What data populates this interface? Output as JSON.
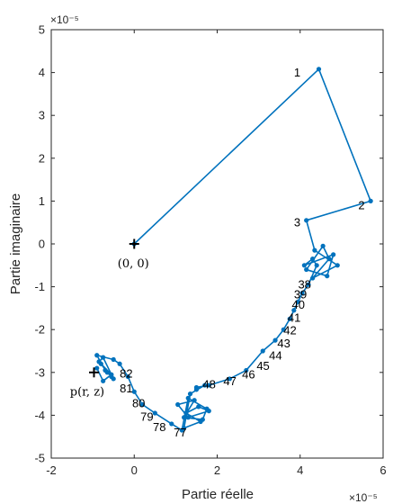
{
  "chart_data": {
    "type": "line",
    "xlabel": "Partie réelle",
    "ylabel": "Partie imaginaire",
    "xlim": [
      -2,
      6
    ],
    "ylim": [
      -5,
      5
    ],
    "x_ticks": [
      "-2",
      "0",
      "2",
      "4",
      "6"
    ],
    "y_ticks": [
      "-5",
      "-4",
      "-3",
      "-2",
      "-1",
      "0",
      "1",
      "2",
      "3",
      "4",
      "5"
    ],
    "x_exponent": "×10⁻⁵",
    "y_exponent": "×10⁻⁵",
    "grid": false,
    "colors": {
      "series": "#0072BD",
      "marker": "#000000",
      "axis": "#262626"
    },
    "series": [
      {
        "x": [
          0,
          4.45,
          5.7,
          4.15,
          4.35,
          4.9,
          4.3,
          4.7,
          4.55,
          4.15,
          4.65,
          4.8,
          4.1,
          4.3,
          4.4,
          4.2,
          4.05,
          3.95,
          3.85,
          3.75,
          3.6,
          3.4,
          3.1,
          2.7,
          2.3,
          1.8,
          1.5,
          1.5,
          1.7,
          1.35,
          1.2,
          1.6,
          1.25,
          1.55,
          1.8,
          1.3,
          1.05,
          1.45,
          1.2,
          1.65,
          1.75,
          1.3,
          1.15,
          0.9,
          0.5,
          0.2,
          0,
          -0.15,
          -0.35,
          -0.5,
          -0.9,
          -0.7,
          -0.55,
          -0.8,
          -0.65,
          -0.5,
          -0.75,
          -0.85,
          -0.55,
          -0.75,
          -0.9
        ],
        "y": [
          0,
          4.08,
          1.0,
          0.55,
          -0.15,
          -0.5,
          -0.8,
          -0.35,
          -0.05,
          -0.6,
          -0.75,
          -0.25,
          -0.5,
          -0.35,
          -0.5,
          -0.95,
          -1.15,
          -1.35,
          -1.55,
          -1.75,
          -2.0,
          -2.25,
          -2.5,
          -2.95,
          -3.15,
          -3.3,
          -3.35,
          -3.4,
          -3.3,
          -3.5,
          -4.3,
          -4.15,
          -3.95,
          -3.8,
          -3.9,
          -4.05,
          -3.75,
          -3.65,
          -4.05,
          -4.1,
          -3.85,
          -3.6,
          -4.35,
          -4.2,
          -3.95,
          -3.75,
          -3.45,
          -3.1,
          -2.8,
          -2.7,
          -2.6,
          -2.95,
          -3.1,
          -2.8,
          -3.0,
          -3.15,
          -2.65,
          -2.75,
          -3.05,
          -3.2,
          -2.9
        ]
      }
    ],
    "point_labels": [
      {
        "text": "1",
        "x": 4.45,
        "y": 4.08,
        "dx": 3.85,
        "dy": 4.0
      },
      {
        "text": "2",
        "x": 5.7,
        "y": 1.0,
        "dx": 5.4,
        "dy": 0.9
      },
      {
        "text": "3",
        "x": 4.15,
        "y": 0.55,
        "dx": 3.85,
        "dy": 0.5
      },
      {
        "text": "38",
        "x": 4.05,
        "y": -0.95,
        "dx": 3.95,
        "dy": -0.95
      },
      {
        "text": "39",
        "x": 3.95,
        "y": -1.15,
        "dx": 3.85,
        "dy": -1.18
      },
      {
        "text": "40",
        "x": 3.85,
        "y": -1.4,
        "dx": 3.8,
        "dy": -1.42
      },
      {
        "text": "41",
        "x": 3.75,
        "y": -1.65,
        "dx": 3.7,
        "dy": -1.72
      },
      {
        "text": "42",
        "x": 3.6,
        "y": -1.95,
        "dx": 3.6,
        "dy": -2.02
      },
      {
        "text": "43",
        "x": 3.45,
        "y": -2.25,
        "dx": 3.45,
        "dy": -2.32
      },
      {
        "text": "44",
        "x": 3.25,
        "y": -2.5,
        "dx": 3.25,
        "dy": -2.6
      },
      {
        "text": "45",
        "x": 3.05,
        "y": -2.72,
        "dx": 2.95,
        "dy": -2.85
      },
      {
        "text": "46",
        "x": 2.8,
        "y": -2.9,
        "dx": 2.6,
        "dy": -3.05
      },
      {
        "text": "47",
        "x": 2.4,
        "y": -3.1,
        "dx": 2.15,
        "dy": -3.2
      },
      {
        "text": "48",
        "x": 2.1,
        "y": -3.2,
        "dx": 1.65,
        "dy": -3.28
      },
      {
        "text": "77",
        "x": 1.2,
        "y": -4.35,
        "dx": 0.95,
        "dy": -4.4
      },
      {
        "text": "78",
        "x": 0.8,
        "y": -4.25,
        "dx": 0.45,
        "dy": -4.28
      },
      {
        "text": "79",
        "x": 0.45,
        "y": -4.0,
        "dx": 0.15,
        "dy": -4.03
      },
      {
        "text": "80",
        "x": 0.1,
        "y": -3.7,
        "dx": -0.05,
        "dy": -3.72
      },
      {
        "text": "81",
        "x": -0.2,
        "y": -3.3,
        "dx": -0.35,
        "dy": -3.37
      },
      {
        "text": "82",
        "x": -0.55,
        "y": -3.0,
        "dx": -0.35,
        "dy": -3.03
      }
    ],
    "markers": [
      {
        "label": "(0, 0)",
        "x": 0,
        "y": 0,
        "lx": -0.4,
        "ly": -0.45
      },
      {
        "label": "p(r, z)",
        "x": -0.97,
        "y": -3.0,
        "lx": -1.55,
        "ly": -3.45
      }
    ]
  }
}
